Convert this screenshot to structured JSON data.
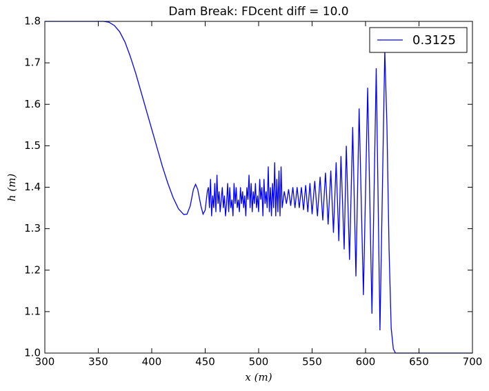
{
  "chart_data": {
    "type": "line",
    "title": "Dam Break: FDcent diff = 10.0",
    "x_label": "x (m)",
    "y_label": "h (m)",
    "x": [
      300,
      355,
      360,
      365,
      370,
      375,
      380,
      385,
      390,
      395,
      400,
      405,
      410,
      415,
      420,
      425,
      430,
      433,
      436,
      439,
      441,
      443,
      446,
      448,
      450,
      452,
      453,
      454,
      455,
      456,
      457,
      458,
      459,
      460,
      461,
      462,
      463,
      464,
      465,
      466,
      467,
      468,
      469,
      470,
      471,
      472,
      473,
      474,
      475,
      476,
      477,
      478,
      479,
      480,
      481,
      482,
      483,
      484,
      485,
      486,
      487,
      488,
      489,
      490,
      491,
      492,
      493,
      494,
      495,
      496,
      497,
      498,
      499,
      500,
      501,
      502,
      503,
      504,
      505,
      506,
      507,
      508,
      509,
      510,
      511,
      512,
      513,
      514,
      515,
      516,
      517,
      518,
      519,
      520,
      521,
      522,
      524,
      526,
      528,
      530,
      532,
      534,
      536,
      538,
      540,
      542,
      544,
      546,
      548,
      550,
      552.5,
      555,
      557.5,
      560,
      562.5,
      565,
      567.5,
      570,
      572.5,
      575,
      577,
      580,
      582,
      585,
      588,
      591,
      594,
      598,
      602,
      606,
      610,
      613.5,
      618,
      620,
      622,
      624,
      626,
      628,
      700
    ],
    "series": [
      {
        "name": "0.3125",
        "color": "#0000ff",
        "values": [
          1.8,
          1.8,
          1.798,
          1.79,
          1.775,
          1.75,
          1.715,
          1.675,
          1.63,
          1.585,
          1.54,
          1.495,
          1.45,
          1.41,
          1.375,
          1.348,
          1.334,
          1.335,
          1.355,
          1.395,
          1.407,
          1.395,
          1.355,
          1.335,
          1.345,
          1.39,
          1.4,
          1.35,
          1.42,
          1.33,
          1.38,
          1.35,
          1.41,
          1.34,
          1.43,
          1.36,
          1.39,
          1.34,
          1.37,
          1.4,
          1.35,
          1.38,
          1.33,
          1.36,
          1.41,
          1.34,
          1.4,
          1.35,
          1.37,
          1.33,
          1.41,
          1.36,
          1.4,
          1.35,
          1.37,
          1.34,
          1.4,
          1.36,
          1.39,
          1.35,
          1.38,
          1.33,
          1.4,
          1.37,
          1.43,
          1.35,
          1.41,
          1.34,
          1.39,
          1.36,
          1.41,
          1.35,
          1.38,
          1.34,
          1.42,
          1.37,
          1.4,
          1.33,
          1.42,
          1.36,
          1.39,
          1.35,
          1.45,
          1.34,
          1.4,
          1.33,
          1.41,
          1.35,
          1.46,
          1.33,
          1.42,
          1.34,
          1.44,
          1.33,
          1.45,
          1.35,
          1.39,
          1.36,
          1.395,
          1.355,
          1.4,
          1.35,
          1.4,
          1.35,
          1.4,
          1.345,
          1.405,
          1.34,
          1.41,
          1.335,
          1.415,
          1.33,
          1.425,
          1.32,
          1.435,
          1.31,
          1.44,
          1.29,
          1.46,
          1.27,
          1.475,
          1.25,
          1.5,
          1.225,
          1.545,
          1.185,
          1.59,
          1.14,
          1.64,
          1.095,
          1.687,
          1.055,
          1.73,
          1.55,
          1.25,
          1.06,
          1.01,
          1.0,
          1.0
        ]
      }
    ],
    "xlim": [
      300,
      700
    ],
    "ylim": [
      1.0,
      1.8
    ],
    "xticks": [
      300,
      350,
      400,
      450,
      500,
      550,
      600,
      650,
      700
    ],
    "yticks": [
      {
        "value": 1.0,
        "label": "1.0"
      },
      1.1,
      1.2,
      1.3,
      1.4,
      1.5,
      1.6,
      1.7,
      1.8
    ],
    "grid": false,
    "legend": "upper right"
  }
}
